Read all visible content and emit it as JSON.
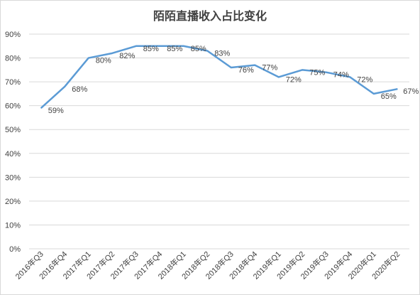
{
  "chart_data": {
    "type": "line",
    "title": "陌陌直播收入占比变化",
    "xlabel": "",
    "ylabel": "",
    "ylim": [
      0,
      90
    ],
    "ytick_step": 10,
    "yunit": "%",
    "grid": true,
    "legend": "none",
    "colors": {
      "line": "#5b9bd5",
      "grid": "#d9d9d9",
      "text": "#404040"
    },
    "categories": [
      "2016年Q3",
      "2016年Q4",
      "2017年Q1",
      "2017年Q2",
      "2017年Q3",
      "2017年Q4",
      "2018年Q1",
      "2018年Q2",
      "2018年Q3",
      "2018年Q4",
      "2019年Q1",
      "2019年Q2",
      "2019年Q3",
      "2019年Q4",
      "2020年Q1",
      "2020年Q2"
    ],
    "series": [
      {
        "values": [
          59,
          68,
          80,
          82,
          85,
          85,
          85,
          83,
          76,
          77,
          72,
          75,
          74,
          72,
          65,
          67
        ]
      }
    ],
    "data_labels": [
      "59%",
      "68%",
      "80%",
      "82%",
      "85%",
      "85%",
      "85%",
      "83%",
      "76%",
      "77%",
      "72%",
      "75%",
      "74%",
      "72%",
      "65%",
      "67%"
    ]
  }
}
